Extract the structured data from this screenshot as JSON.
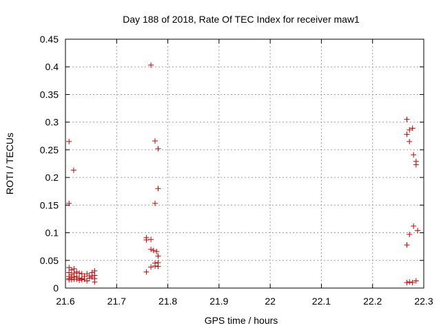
{
  "chart_data": {
    "type": "scatter",
    "title": "Day 188 of 2018, Rate Of TEC Index for receiver maw1",
    "xlabel": "GPS time / hours",
    "ylabel": "ROTI / TECUs",
    "xlim": [
      21.6,
      22.3
    ],
    "ylim": [
      0,
      0.45
    ],
    "xticks": [
      21.6,
      21.7,
      21.8,
      21.9,
      22.0,
      22.1,
      22.2,
      22.3
    ],
    "xtick_labels": [
      "21.6",
      "21.7",
      "21.8",
      "21.9",
      "22",
      "22.1",
      "22.2",
      "22.3"
    ],
    "yticks": [
      0,
      0.05,
      0.1,
      0.15,
      0.2,
      0.25,
      0.3,
      0.35,
      0.4,
      0.45
    ],
    "ytick_labels": [
      "0",
      "0.05",
      "0.1",
      "0.15",
      "0.2",
      "0.25",
      "0.3",
      "0.35",
      "0.4",
      "0.45"
    ],
    "grid": true,
    "marker": "+",
    "color": "#cc0000",
    "series": [
      {
        "name": "ROTI",
        "points": [
          [
            21.607,
            0.265
          ],
          [
            21.607,
            0.153
          ],
          [
            21.616,
            0.213
          ],
          [
            21.607,
            0.037
          ],
          [
            21.607,
            0.028
          ],
          [
            21.607,
            0.021
          ],
          [
            21.607,
            0.017
          ],
          [
            21.607,
            0.015
          ],
          [
            21.612,
            0.033
          ],
          [
            21.612,
            0.024
          ],
          [
            21.612,
            0.019
          ],
          [
            21.612,
            0.015
          ],
          [
            21.617,
            0.035
          ],
          [
            21.617,
            0.027
          ],
          [
            21.617,
            0.02
          ],
          [
            21.617,
            0.016
          ],
          [
            21.622,
            0.029
          ],
          [
            21.622,
            0.021
          ],
          [
            21.622,
            0.016
          ],
          [
            21.627,
            0.027
          ],
          [
            21.627,
            0.018
          ],
          [
            21.627,
            0.014
          ],
          [
            21.632,
            0.026
          ],
          [
            21.632,
            0.017
          ],
          [
            21.632,
            0.015
          ],
          [
            21.637,
            0.021
          ],
          [
            21.637,
            0.016
          ],
          [
            21.642,
            0.026
          ],
          [
            21.642,
            0.013
          ],
          [
            21.647,
            0.022
          ],
          [
            21.647,
            0.018
          ],
          [
            21.652,
            0.028
          ],
          [
            21.652,
            0.02
          ],
          [
            21.657,
            0.031
          ],
          [
            21.657,
            0.023
          ],
          [
            21.657,
            0.017
          ],
          [
            21.657,
            0.011
          ],
          [
            21.758,
            0.091
          ],
          [
            21.758,
            0.087
          ],
          [
            21.758,
            0.029
          ],
          [
            21.767,
            0.403
          ],
          [
            21.767,
            0.088
          ],
          [
            21.767,
            0.07
          ],
          [
            21.767,
            0.038
          ],
          [
            21.772,
            0.068
          ],
          [
            21.775,
            0.266
          ],
          [
            21.775,
            0.153
          ],
          [
            21.775,
            0.045
          ],
          [
            21.775,
            0.04
          ],
          [
            21.778,
            0.066
          ],
          [
            21.781,
            0.252
          ],
          [
            21.781,
            0.18
          ],
          [
            21.781,
            0.058
          ],
          [
            21.781,
            0.046
          ],
          [
            21.781,
            0.039
          ],
          [
            22.267,
            0.305
          ],
          [
            22.267,
            0.278
          ],
          [
            22.267,
            0.078
          ],
          [
            22.267,
            0.01
          ],
          [
            22.272,
            0.286
          ],
          [
            22.272,
            0.265
          ],
          [
            22.272,
            0.097
          ],
          [
            22.272,
            0.011
          ],
          [
            22.278,
            0.289
          ],
          [
            22.278,
            0.01
          ],
          [
            22.28,
            0.241
          ],
          [
            22.28,
            0.112
          ],
          [
            22.285,
            0.229
          ],
          [
            22.285,
            0.223
          ],
          [
            22.285,
            0.013
          ],
          [
            22.288,
            0.104
          ]
        ]
      }
    ]
  }
}
